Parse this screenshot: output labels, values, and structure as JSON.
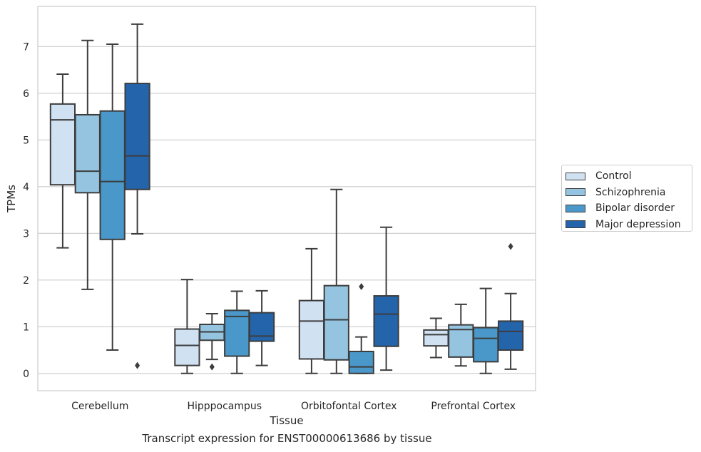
{
  "chart_data": {
    "type": "box",
    "caption": "Transcript expression for ENST00000613686 by tissue",
    "xlabel": "Tissue",
    "ylabel": "TPMs",
    "ylim": [
      -0.37,
      7.86
    ],
    "yticks": [
      "0",
      "1",
      "2",
      "3",
      "4",
      "5",
      "6",
      "7"
    ],
    "grid": "horizontal",
    "legend_position": "right",
    "categories": [
      "Cerebellum",
      "Hipppocampus",
      "Orbitofontal Cortex",
      "Prefrontal Cortex"
    ],
    "series": [
      {
        "name": "Control",
        "color": "#d0e1f2",
        "boxes": [
          {
            "whisker_low": 2.69,
            "q1": 4.04,
            "median": 5.43,
            "q3": 5.77,
            "whisker_high": 6.41,
            "outliers": []
          },
          {
            "whisker_low": 0.0,
            "q1": 0.17,
            "median": 0.6,
            "q3": 0.95,
            "whisker_high": 2.01,
            "outliers": []
          },
          {
            "whisker_low": 0.0,
            "q1": 0.31,
            "median": 1.12,
            "q3": 1.56,
            "whisker_high": 2.67,
            "outliers": []
          },
          {
            "whisker_low": 0.34,
            "q1": 0.59,
            "median": 0.83,
            "q3": 0.93,
            "whisker_high": 1.18,
            "outliers": []
          }
        ]
      },
      {
        "name": "Schizophrenia",
        "color": "#94c4df",
        "boxes": [
          {
            "whisker_low": 1.8,
            "q1": 3.87,
            "median": 4.33,
            "q3": 5.54,
            "whisker_high": 7.13,
            "outliers": []
          },
          {
            "whisker_low": 0.3,
            "q1": 0.71,
            "median": 0.89,
            "q3": 1.05,
            "whisker_high": 1.28,
            "outliers": [
              0.14
            ]
          },
          {
            "whisker_low": 0.0,
            "q1": 0.29,
            "median": 1.15,
            "q3": 1.88,
            "whisker_high": 3.94,
            "outliers": []
          },
          {
            "whisker_low": 0.16,
            "q1": 0.35,
            "median": 0.94,
            "q3": 1.04,
            "whisker_high": 1.48,
            "outliers": []
          }
        ]
      },
      {
        "name": "Bipolar disorder",
        "color": "#4a98c9",
        "boxes": [
          {
            "whisker_low": 0.5,
            "q1": 2.87,
            "median": 4.11,
            "q3": 5.62,
            "whisker_high": 7.05,
            "outliers": []
          },
          {
            "whisker_low": 0.0,
            "q1": 0.37,
            "median": 1.22,
            "q3": 1.35,
            "whisker_high": 1.76,
            "outliers": []
          },
          {
            "whisker_low": 0.0,
            "q1": 0.0,
            "median": 0.14,
            "q3": 0.47,
            "whisker_high": 0.78,
            "outliers": [
              1.86
            ]
          },
          {
            "whisker_low": 0.0,
            "q1": 0.25,
            "median": 0.75,
            "q3": 0.98,
            "whisker_high": 1.82,
            "outliers": []
          }
        ]
      },
      {
        "name": "Major depression",
        "color": "#2464ab",
        "boxes": [
          {
            "whisker_low": 2.99,
            "q1": 3.94,
            "median": 4.66,
            "q3": 6.21,
            "whisker_high": 7.48,
            "outliers": [
              0.17
            ]
          },
          {
            "whisker_low": 0.17,
            "q1": 0.69,
            "median": 0.8,
            "q3": 1.3,
            "whisker_high": 1.77,
            "outliers": []
          },
          {
            "whisker_low": 0.07,
            "q1": 0.58,
            "median": 1.27,
            "q3": 1.66,
            "whisker_high": 3.13,
            "outliers": []
          },
          {
            "whisker_low": 0.09,
            "q1": 0.5,
            "median": 0.9,
            "q3": 1.12,
            "whisker_high": 1.71,
            "outliers": [
              2.72
            ]
          }
        ]
      }
    ]
  }
}
